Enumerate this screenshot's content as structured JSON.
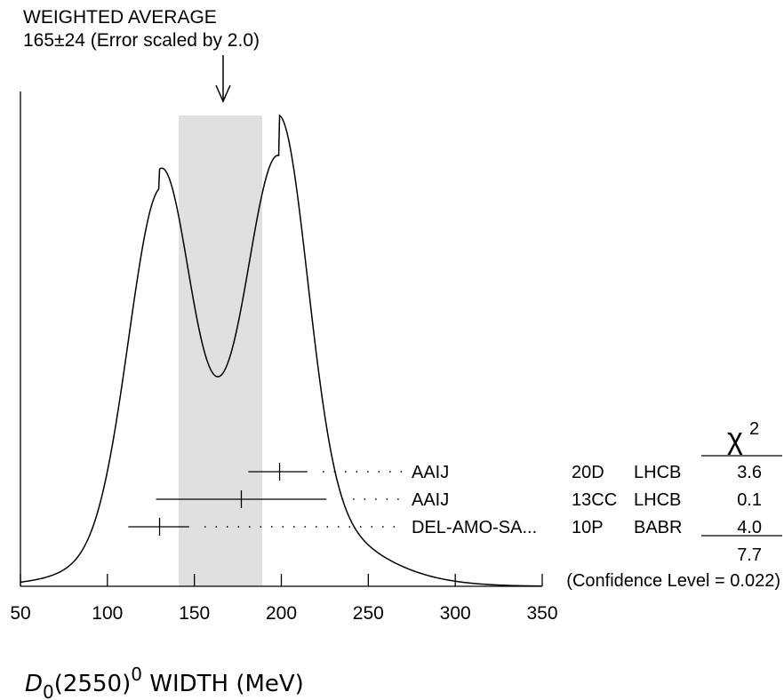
{
  "header": {
    "line1": "WEIGHTED AVERAGE",
    "line2": "165±24 (Error scaled by 2.0)"
  },
  "chi2_header": "χ",
  "chi2_sup": "2",
  "xlabel": {
    "sym": "D",
    "sub": "0",
    "mid": "(2550)",
    "sup": "0",
    "rest": " WIDTH (MeV)"
  },
  "chart_data": {
    "type": "ideogram",
    "xlim": [
      50,
      350
    ],
    "xticks": [
      50,
      100,
      150,
      200,
      250,
      300,
      350
    ],
    "weighted_average": {
      "value": 165,
      "error": 24,
      "error_scale": 2.0
    },
    "measurements": [
      {
        "author": "AAIJ",
        "year": "20D",
        "experiment": "LHCB",
        "value": 199,
        "err_minus": 18,
        "err_plus": 16,
        "chi2": "3.6"
      },
      {
        "author": "AAIJ",
        "year": "13CC",
        "experiment": "LHCB",
        "value": 177,
        "err_minus": 49,
        "err_plus": 49,
        "chi2": "0.1"
      },
      {
        "author": "DEL-AMO-SA...",
        "year": "10P",
        "experiment": "BABR",
        "value": 130,
        "err_minus": 18,
        "err_plus": 17,
        "chi2": "4.0"
      }
    ],
    "chi2_total": "7.7",
    "confidence_level": "(Confidence Level = 0.022)"
  }
}
